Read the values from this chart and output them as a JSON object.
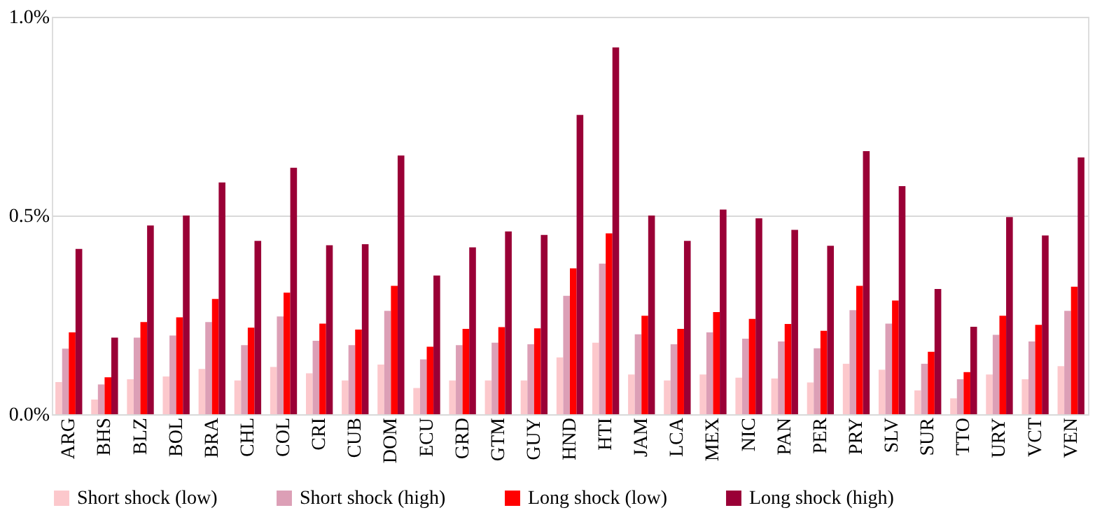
{
  "chart_data": {
    "type": "bar",
    "categories": [
      "ARG",
      "BHS",
      "BLZ",
      "BOL",
      "BRA",
      "CHL",
      "COL",
      "CRI",
      "CUB",
      "DOM",
      "ECU",
      "GRD",
      "GTM",
      "GUY",
      "HND",
      "HTI",
      "JAM",
      "LCA",
      "MEX",
      "NIC",
      "PAN",
      "PER",
      "PRY",
      "SLV",
      "SUR",
      "TTO",
      "URY",
      "VCT",
      "VEN"
    ],
    "series": [
      {
        "name": "Short shock (low)",
        "color": "#fcc8cc",
        "values": [
          0.081,
          0.037,
          0.088,
          0.095,
          0.114,
          0.085,
          0.119,
          0.103,
          0.085,
          0.125,
          0.066,
          0.085,
          0.085,
          0.085,
          0.143,
          0.18,
          0.1,
          0.085,
          0.1,
          0.092,
          0.09,
          0.08,
          0.127,
          0.112,
          0.06,
          0.04,
          0.1,
          0.088,
          0.121
        ]
      },
      {
        "name": "Short shock (high)",
        "color": "#dc9fb6",
        "values": [
          0.165,
          0.075,
          0.193,
          0.198,
          0.232,
          0.174,
          0.246,
          0.185,
          0.174,
          0.26,
          0.138,
          0.174,
          0.18,
          0.176,
          0.298,
          0.379,
          0.201,
          0.176,
          0.206,
          0.19,
          0.183,
          0.166,
          0.262,
          0.228,
          0.127,
          0.088,
          0.2,
          0.183,
          0.26
        ]
      },
      {
        "name": "Long shock (low)",
        "color": "#ff0000",
        "values": [
          0.206,
          0.093,
          0.232,
          0.244,
          0.29,
          0.218,
          0.306,
          0.228,
          0.213,
          0.323,
          0.17,
          0.215,
          0.219,
          0.216,
          0.367,
          0.455,
          0.248,
          0.215,
          0.257,
          0.24,
          0.227,
          0.21,
          0.323,
          0.286,
          0.157,
          0.106,
          0.248,
          0.225,
          0.321
        ]
      },
      {
        "name": "Long shock (high)",
        "color": "#9a0036",
        "values": [
          0.416,
          0.193,
          0.475,
          0.5,
          0.583,
          0.436,
          0.62,
          0.425,
          0.428,
          0.651,
          0.349,
          0.42,
          0.46,
          0.451,
          0.753,
          0.923,
          0.5,
          0.436,
          0.515,
          0.493,
          0.464,
          0.424,
          0.662,
          0.574,
          0.315,
          0.22,
          0.496,
          0.45,
          0.646
        ]
      }
    ],
    "ylim": [
      0,
      1.0
    ],
    "yticks": [
      {
        "value": 0,
        "label": "0.0%"
      },
      {
        "value": 0.5,
        "label": "0.5%"
      },
      {
        "value": 1.0,
        "label": "1.0%"
      }
    ],
    "grid": "y",
    "legend": "bottom"
  }
}
